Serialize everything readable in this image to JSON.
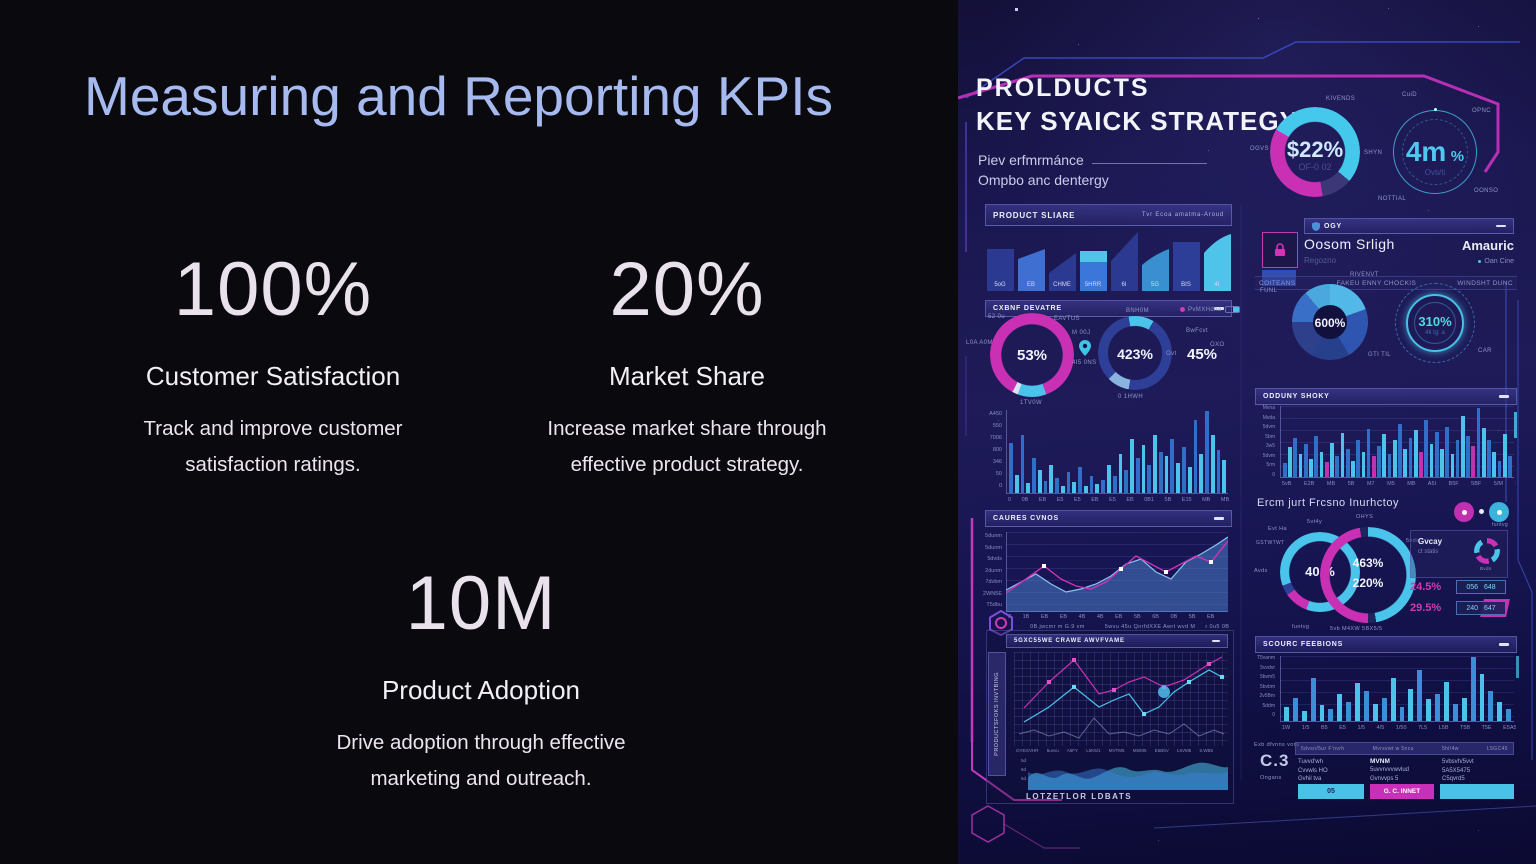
{
  "slide": {
    "title": "Measuring and Reporting KPIs",
    "stats": [
      {
        "value": "100%",
        "label": "Customer Satisfaction",
        "desc1": "Track and improve customer",
        "desc2": "satisfaction ratings."
      },
      {
        "value": "20%",
        "label": "Market Share",
        "desc1": "Increase market share through",
        "desc2": "effective product strategy."
      },
      {
        "value": "10M",
        "label": "Product Adoption",
        "desc1": "Drive adoption through effective",
        "desc2": "marketing and outreach."
      }
    ]
  },
  "dash": {
    "title1": "PROLDUCTS",
    "title2": "KEY SYAICK STRATEGY",
    "sub1": "Piev erfmrmánce",
    "sub2": "Ompbo anc dentergy",
    "kpi1": {
      "value": "$22%",
      "sub": "OF-0 02",
      "lab_top": "KIVENDS",
      "lab_left": "OGVS",
      "lab_right": "SHYN"
    },
    "kpi2": {
      "value": "4m",
      "unit": "%",
      "sub": "Ovti/ti",
      "lab1": "CuiD",
      "lab2": "OPNC",
      "lab3": "OONSO",
      "lab4": "NOTTIAL"
    },
    "pshare": {
      "title": "PRODUCT SLIARE",
      "right": "Tvr Ecoa amatma-Aroud",
      "bars": [
        "5oG",
        "EB",
        "CHME",
        "5HRR",
        "6I",
        "5G",
        "BIS",
        "4I"
      ]
    },
    "cx": {
      "title": "CXBNF DEVATRE",
      "d1": "53%",
      "d2": "423%",
      "v3": "45%",
      "v3lab": "Ovt",
      "leg1": "PvMXHdna",
      "leg2": "BwFcvt",
      "leg3": "OXO",
      "l_tl": "52 0u",
      "l_top": "EAVTUS",
      "l_left": "L0A A0M",
      "l_bot": "1TV0W",
      "l_mid": "M 00J",
      "l_pin": "4I5 0NS",
      "l_d2top": "BNH0M",
      "l_d2bot": "0 1HWH"
    },
    "hist": {
      "y": "A450\n550\n7006\n800\n346\n50\n0",
      "x": "0 0B EB E5 E5 EB E5 EB 0B1 5B E15 MB MB",
      "bars": {
        "v": [
          60,
          22,
          70,
          12,
          42,
          28,
          14,
          34,
          18,
          9,
          25,
          13,
          31,
          9,
          20,
          11,
          16,
          34,
          20,
          47,
          28,
          65,
          42,
          58,
          34,
          70,
          50,
          45,
          65,
          36,
          56,
          31,
          88,
          47,
          99,
          70,
          52,
          40
        ]
      }
    },
    "caures": {
      "title": "CAURES CVNOS",
      "y": "5dunm\n5dunm\n5dvds\n2dunm\n7dvbm\n2WN5E\nT5dbu",
      "x": "0 1B EB EB 4B 4B EB 5B 6B 0B 5B EB",
      "leg1": "0B.jwcmr m G.9 vm",
      "leg2": "5wvu 45u QorfdXXE Awrt wvd M",
      "leg3": "r 0u5 0B"
    },
    "pf": {
      "side": "PRODUCTSFOKS INVTBING",
      "title": "5GXC55WE CRAWE AWVFVAME",
      "x": "OYEGVHR 5uvvu A5FY L5K5/1 MVTM5 M5/M5 E5B5V L5VM5 5.WB5",
      "wy": "5d\n5d\n5d",
      "footer": "LOTZETLOR LDBATS"
    },
    "lock": {
      "header": "OGY",
      "title": "Oosom Srligh",
      "sub": "Regozno",
      "right": "Amauric",
      "rightsub": "Oan Cine",
      "c1": "COITEANS",
      "c2": "FAKEU ENNY CHOCKIS",
      "c3": "WINDSHT DUNC"
    },
    "pie": {
      "value": "600%",
      "l1": "RIVENVT",
      "l2": "FUNL",
      "l3": "GTI TIL"
    },
    "g310": {
      "value": "310%",
      "sub": "4ti tg: a",
      "lab": "CAR"
    },
    "odd": {
      "title": "ODDUNY SHOKY",
      "y": "Mvna\nMvda\n5dvm\n5bm\n3w5\n5dvm\n5rm\n0",
      "x": "5vB E2B MB 5B M7 M5 MB A5I B5F 5BF 5/M 5/5",
      "bars": {
        "v": [
          20,
          42,
          55,
          32,
          46,
          26,
          58,
          35,
          21,
          48,
          30,
          62,
          40,
          23,
          52,
          35,
          68,
          29,
          44,
          60,
          32,
          52,
          74,
          40,
          55,
          66,
          35,
          80,
          46,
          63,
          40,
          71,
          32,
          52,
          86,
          58,
          44,
          97,
          69,
          52,
          35,
          23,
          60,
          29
        ],
        "c": [
          0,
          1,
          0,
          1,
          0,
          1,
          0,
          1,
          2,
          1,
          0,
          1,
          0,
          1,
          0,
          1,
          0,
          2,
          0,
          1,
          0,
          1,
          0,
          1,
          0,
          1,
          2,
          0,
          1,
          0,
          1,
          0,
          1,
          0,
          1,
          0,
          2,
          0,
          1,
          0,
          1,
          0,
          1,
          0
        ]
      }
    },
    "ercm": {
      "title": "Ercm jurt Frcsno Inurhctoy",
      "r1": "40 %",
      "r2a": "463%",
      "r2b": "220%",
      "mini_t": "Gvcay",
      "mini_s": "ct statis",
      "mini_lab": "Bvds",
      "corner": "funtvg",
      "row1v": "24.5%",
      "row1a": "056",
      "row1b": "648",
      "row2v": "29.5%",
      "row2a": "240",
      "row2b": "647",
      "l0": "GSTWTWT",
      "l1": "Evt Ha",
      "l2": "5vt4y",
      "l3": "OHYS",
      "l4": "5vds",
      "l5": "Avds",
      "l6": "funtvg",
      "l7": "5vb   M4XW   5BX5/5"
    },
    "sc": {
      "title": "SCOURC FEEBIONS",
      "y": "T5vanm\n5vvdvr\n5bvm5\n5bvbm\n2v5Bm\n5ddm\n0",
      "x": "1W 1/5 B5 E5 1/5 4/5 1/50 7L5 L5B T5B T5E E5A5",
      "bars": {
        "v": [
          22,
          36,
          15,
          66,
          24,
          18,
          42,
          30,
          58,
          46,
          26,
          36,
          66,
          22,
          50,
          78,
          34,
          42,
          60,
          26,
          36,
          99,
          72,
          46,
          30,
          18
        ]
      }
    },
    "table": {
      "stat_label": "Exb dfvnns vora",
      "stat_value": "C.3",
      "stat_sub": "Ongans",
      "h0": "5dvsn/5ur F'nvrh",
      "h1": "Mvrsvwt w 5ncu",
      "h2": "5hl/4w",
      "h3": "L5GC45",
      "c1": "Tuvvd'wh\nCvvwls HO\nGvhil tva",
      "c2t": "MVNM",
      "c2": "5uvvrvvvwvlud\nGvnvvps 5",
      "c3": "5vbsvh/5vvt\n5A5X5475\nC5qvrd5",
      "b1": "05",
      "b2": "G. C. INNET",
      "b3": ""
    },
    "colors": {
      "accent_cyan": "#4ac4ea",
      "accent_blue": "#3a7fd4",
      "accent_magenta": "#c930b4",
      "title_blue": "#a6baf0"
    }
  }
}
